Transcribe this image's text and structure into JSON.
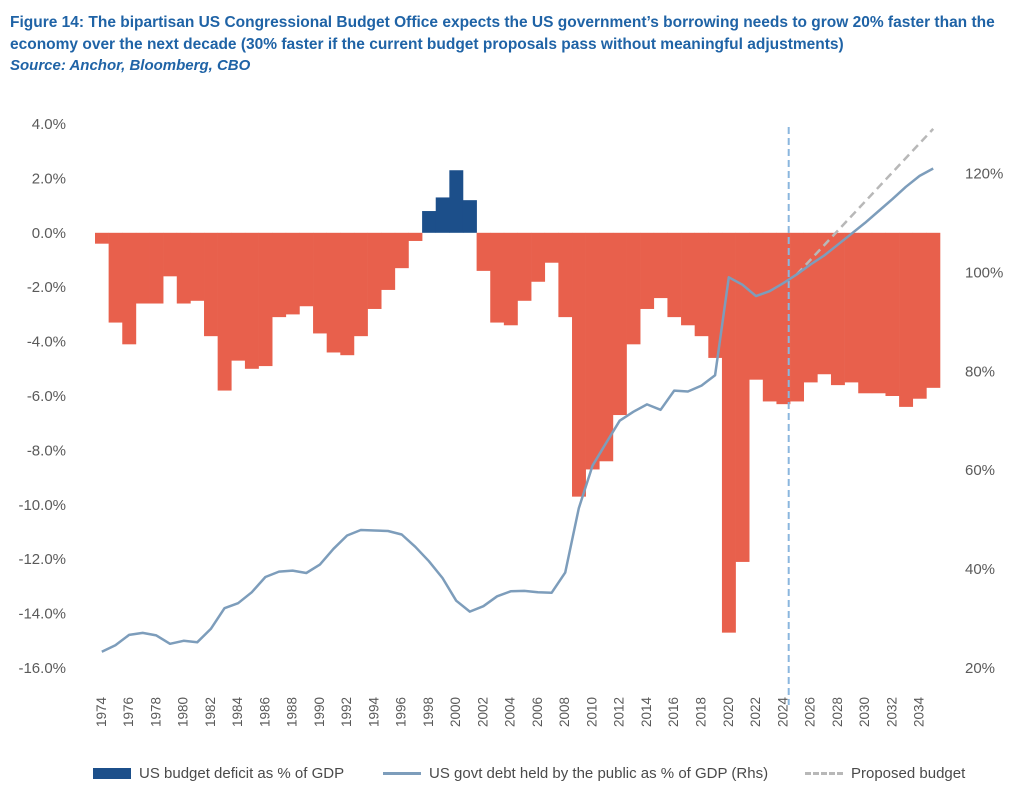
{
  "header": {
    "title": "Figure 14: The bipartisan US Congressional Budget Office expects the US government’s borrowing needs to grow 20% faster than the economy over the next decade (30% faster if the current budget proposals pass without meaningful adjustments)",
    "source": "Source: Anchor, Bloomberg, CBO"
  },
  "colors": {
    "deficit_negative": "#e8604c",
    "deficit_positive": "#1c4f8a",
    "debt_line": "#7d9dbb",
    "proposed_line": "#b8b8b8",
    "divider_line": "#8ab6de",
    "axis_text": "#5a5a5a",
    "title_blue": "#1f63a6"
  },
  "legend": {
    "deficit": "US budget deficit as % of GDP",
    "debt": "US govt debt held by the public as % of GDP (Rhs)",
    "proposed": "Proposed budget"
  },
  "chart_data": {
    "type": "bar",
    "x_tick_labels": [
      "1974",
      "1976",
      "1978",
      "1980",
      "1982",
      "1984",
      "1986",
      "1988",
      "1990",
      "1992",
      "1994",
      "1996",
      "1998",
      "2000",
      "2002",
      "2004",
      "2006",
      "2008",
      "2010",
      "2012",
      "2014",
      "2016",
      "2018",
      "2020",
      "2022",
      "2024",
      "2026",
      "2028",
      "2030",
      "2032",
      "2034"
    ],
    "y_left": {
      "ylim": [
        -16,
        4
      ],
      "ticks": [
        "4.0%",
        "2.0%",
        "0.0%",
        "-2.0%",
        "-4.0%",
        "-6.0%",
        "-8.0%",
        "-10.0%",
        "-12.0%",
        "-14.0%",
        "-16.0%"
      ]
    },
    "y_right": {
      "ylim": [
        20,
        130
      ],
      "ticks": [
        "120%",
        "100%",
        "80%",
        "60%",
        "40%",
        "20%"
      ]
    },
    "years": [
      1974,
      1975,
      1976,
      1977,
      1978,
      1979,
      1980,
      1981,
      1982,
      1983,
      1984,
      1985,
      1986,
      1987,
      1988,
      1989,
      1990,
      1991,
      1992,
      1993,
      1994,
      1995,
      1996,
      1997,
      1998,
      1999,
      2000,
      2001,
      2002,
      2003,
      2004,
      2005,
      2006,
      2007,
      2008,
      2009,
      2010,
      2011,
      2012,
      2013,
      2014,
      2015,
      2016,
      2017,
      2018,
      2019,
      2020,
      2021,
      2022,
      2023,
      2024,
      2025,
      2026,
      2027,
      2028,
      2029,
      2030,
      2031,
      2032,
      2033,
      2034,
      2035
    ],
    "series": [
      {
        "name": "US budget deficit as % of GDP",
        "axis": "left",
        "type": "bar",
        "values": [
          -0.4,
          -3.3,
          -4.1,
          -2.6,
          -2.6,
          -1.6,
          -2.6,
          -2.5,
          -3.8,
          -5.8,
          -4.7,
          -5.0,
          -4.9,
          -3.1,
          -3.0,
          -2.7,
          -3.7,
          -4.4,
          -4.5,
          -3.8,
          -2.8,
          -2.1,
          -1.3,
          -0.3,
          0.8,
          1.3,
          2.3,
          1.2,
          -1.4,
          -3.3,
          -3.4,
          -2.5,
          -1.8,
          -1.1,
          -3.1,
          -9.7,
          -8.7,
          -8.4,
          -6.7,
          -4.1,
          -2.8,
          -2.4,
          -3.1,
          -3.4,
          -3.8,
          -4.6,
          -14.7,
          -12.1,
          -5.4,
          -6.2,
          -6.3,
          -6.2,
          -5.5,
          -5.2,
          -5.6,
          -5.5,
          -5.9,
          -5.9,
          -6.0,
          -6.4,
          -6.1,
          -5.7
        ]
      },
      {
        "name": "US govt debt held by the public as % of GDP (Rhs)",
        "axis": "right",
        "type": "line",
        "values": [
          23.3,
          24.6,
          26.7,
          27.1,
          26.6,
          24.9,
          25.5,
          25.2,
          27.9,
          32.1,
          33.1,
          35.3,
          38.4,
          39.5,
          39.7,
          39.2,
          40.9,
          44.1,
          46.8,
          47.9,
          47.8,
          47.7,
          47.0,
          44.5,
          41.6,
          38.2,
          33.6,
          31.4,
          32.5,
          34.5,
          35.5,
          35.6,
          35.3,
          35.2,
          39.3,
          52.3,
          60.9,
          65.5,
          70.0,
          71.8,
          73.3,
          72.2,
          76.1,
          75.9,
          77.1,
          79.2,
          99.0,
          97.5,
          95.2,
          96.2,
          97.8,
          99.6,
          101.6,
          103.4,
          105.6,
          107.8,
          110.0,
          112.4,
          114.8,
          117.3,
          119.5,
          121.0
        ]
      },
      {
        "name": "Proposed budget",
        "axis": "right",
        "type": "line",
        "style": "dashed",
        "x": [
          2025,
          2035
        ],
        "values": [
          99.6,
          129.0
        ]
      }
    ],
    "reference_line": {
      "axis": "x",
      "value": 2025,
      "style": "dashed"
    },
    "legend_position": "bottom",
    "grid": false
  }
}
